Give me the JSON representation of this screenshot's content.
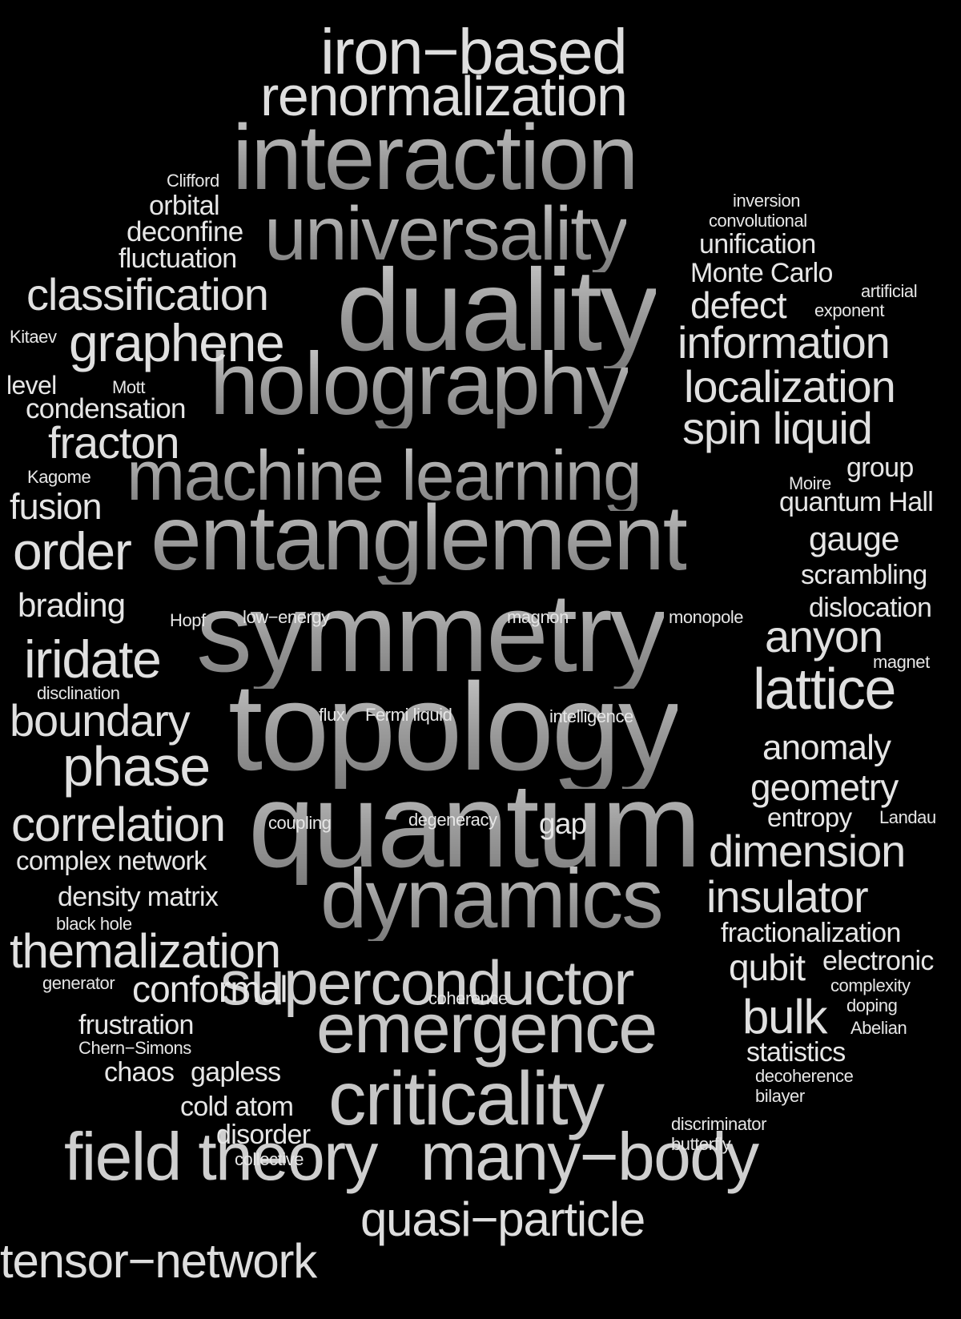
{
  "words": [
    {
      "text": "iron−based",
      "weight": 5
    },
    {
      "text": "renormalization",
      "weight": 5
    },
    {
      "text": "interaction",
      "weight": 8
    },
    {
      "text": "universality",
      "weight": 7
    },
    {
      "text": "duality",
      "weight": 9
    },
    {
      "text": "holography",
      "weight": 8
    },
    {
      "text": "machine learning",
      "weight": 7
    },
    {
      "text": "entanglement",
      "weight": 9
    },
    {
      "text": "symmetry",
      "weight": 10
    },
    {
      "text": "topology",
      "weight": 10
    },
    {
      "text": "quantum",
      "weight": 10
    },
    {
      "text": "dynamics",
      "weight": 8
    },
    {
      "text": "superconductor",
      "weight": 7
    },
    {
      "text": "emergence",
      "weight": 7
    },
    {
      "text": "criticality",
      "weight": 8
    },
    {
      "text": "field theory",
      "weight": 7
    },
    {
      "text": "many−body",
      "weight": 7
    },
    {
      "text": "quasi−particle",
      "weight": 5
    },
    {
      "text": "tensor−network",
      "weight": 5
    },
    {
      "text": "Clifford",
      "weight": 1
    },
    {
      "text": "orbital",
      "weight": 2
    },
    {
      "text": "deconfine",
      "weight": 2
    },
    {
      "text": "fluctuation",
      "weight": 2
    },
    {
      "text": "classification",
      "weight": 4
    },
    {
      "text": "graphene",
      "weight": 5
    },
    {
      "text": "Kitaev",
      "weight": 1
    },
    {
      "text": "level",
      "weight": 2
    },
    {
      "text": "Mott",
      "weight": 1
    },
    {
      "text": "condensation",
      "weight": 2
    },
    {
      "text": "fracton",
      "weight": 4
    },
    {
      "text": "Kagome",
      "weight": 1
    },
    {
      "text": "fusion",
      "weight": 3
    },
    {
      "text": "order",
      "weight": 5
    },
    {
      "text": "brading",
      "weight": 3
    },
    {
      "text": "Hopf",
      "weight": 1
    },
    {
      "text": "low−energy",
      "weight": 1
    },
    {
      "text": "magnon",
      "weight": 1
    },
    {
      "text": "monopole",
      "weight": 1
    },
    {
      "text": "iridate",
      "weight": 5
    },
    {
      "text": "disclination",
      "weight": 1
    },
    {
      "text": "boundary",
      "weight": 4
    },
    {
      "text": "flux",
      "weight": 1
    },
    {
      "text": "Fermi liquid",
      "weight": 1
    },
    {
      "text": "intelligence",
      "weight": 1
    },
    {
      "text": "phase",
      "weight": 5
    },
    {
      "text": "correlation",
      "weight": 4
    },
    {
      "text": "coupling",
      "weight": 1
    },
    {
      "text": "degeneracy",
      "weight": 1
    },
    {
      "text": "gap",
      "weight": 2
    },
    {
      "text": "complex network",
      "weight": 2
    },
    {
      "text": "density matrix",
      "weight": 2
    },
    {
      "text": "black hole",
      "weight": 1
    },
    {
      "text": "themalization",
      "weight": 5
    },
    {
      "text": "generator",
      "weight": 1
    },
    {
      "text": "conformal",
      "weight": 3
    },
    {
      "text": "coherence",
      "weight": 1
    },
    {
      "text": "frustration",
      "weight": 2
    },
    {
      "text": "Chern−Simons",
      "weight": 1
    },
    {
      "text": "chaos",
      "weight": 2
    },
    {
      "text": "gapless",
      "weight": 2
    },
    {
      "text": "cold atom",
      "weight": 2
    },
    {
      "text": "disorder",
      "weight": 2
    },
    {
      "text": "collective",
      "weight": 1
    },
    {
      "text": "inversion",
      "weight": 1
    },
    {
      "text": "convolutional",
      "weight": 1
    },
    {
      "text": "unification",
      "weight": 2
    },
    {
      "text": "Monte Carlo",
      "weight": 2
    },
    {
      "text": "artificial",
      "weight": 1
    },
    {
      "text": "defect",
      "weight": 3
    },
    {
      "text": "exponent",
      "weight": 1
    },
    {
      "text": "information",
      "weight": 4
    },
    {
      "text": "localization",
      "weight": 4
    },
    {
      "text": "spin liquid",
      "weight": 4
    },
    {
      "text": "group",
      "weight": 2
    },
    {
      "text": "Moire",
      "weight": 1
    },
    {
      "text": "quantum Hall",
      "weight": 2
    },
    {
      "text": "gauge",
      "weight": 3
    },
    {
      "text": "scrambling",
      "weight": 2
    },
    {
      "text": "dislocation",
      "weight": 2
    },
    {
      "text": "anyon",
      "weight": 4
    },
    {
      "text": "magnet",
      "weight": 1
    },
    {
      "text": "lattice",
      "weight": 5
    },
    {
      "text": "anomaly",
      "weight": 3
    },
    {
      "text": "geometry",
      "weight": 3
    },
    {
      "text": "entropy",
      "weight": 2
    },
    {
      "text": "Landau",
      "weight": 1
    },
    {
      "text": "dimension",
      "weight": 4
    },
    {
      "text": "insulator",
      "weight": 4
    },
    {
      "text": "fractionalization",
      "weight": 2
    },
    {
      "text": "qubit",
      "weight": 3
    },
    {
      "text": "electronic",
      "weight": 2
    },
    {
      "text": "complexity",
      "weight": 1
    },
    {
      "text": "doping",
      "weight": 1
    },
    {
      "text": "bulk",
      "weight": 4
    },
    {
      "text": "Abelian",
      "weight": 1
    },
    {
      "text": "statistics",
      "weight": 2
    },
    {
      "text": "decoherence",
      "weight": 1
    },
    {
      "text": "bilayer",
      "weight": 1
    },
    {
      "text": "discriminator",
      "weight": 1
    },
    {
      "text": "butterfly",
      "weight": 1
    }
  ]
}
